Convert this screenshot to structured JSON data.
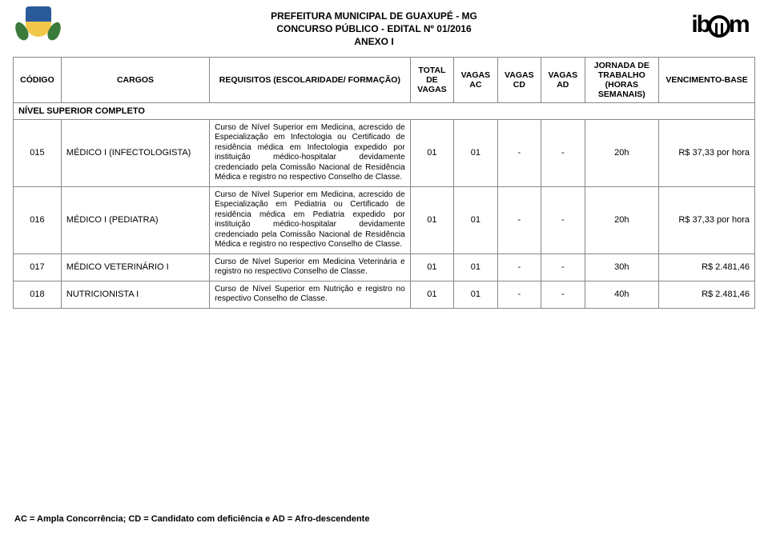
{
  "header": {
    "line1": "PREFEITURA MUNICIPAL DE GUAXUPÉ - MG",
    "line2": "CONCURSO PÚBLICO - EDITAL Nº 01/2016",
    "line3": "ANEXO I"
  },
  "columns": {
    "codigo": "CÓDIGO",
    "cargos": "CARGOS",
    "requisitos": "REQUISITOS (ESCOLARIDADE/ FORMAÇÃO)",
    "total": "TOTAL DE VAGAS",
    "ac": "VAGAS AC",
    "cd": "VAGAS CD",
    "ad": "VAGAS AD",
    "jornada": "JORNADA DE TRABALHO (HORAS SEMANAIS)",
    "vencimento": "VENCIMENTO-BASE"
  },
  "section_title": "NÍVEL SUPERIOR COMPLETO",
  "rows": [
    {
      "codigo": "015",
      "cargo": "MÉDICO I (INFECTOLOGISTA)",
      "requisitos": "Curso de Nível Superior em Medicina, acrescido de Especialização em Infectologia ou Certificado de residência médica em Infectologia expedido por instituição médico-hospitalar devidamente credenciado pela Comissão Nacional de Residência Médica e registro no respectivo Conselho de Classe.",
      "total": "01",
      "ac": "01",
      "cd": "-",
      "ad": "-",
      "jornada": "20h",
      "vencimento": "R$ 37,33 por hora"
    },
    {
      "codigo": "016",
      "cargo": "MÉDICO I (PEDIATRA)",
      "requisitos": "Curso de Nível Superior em Medicina, acrescido de Especialização em Pediatria ou Certificado de residência médica em Pediatria expedido por instituição médico-hospitalar devidamente credenciado pela Comissão Nacional de Residência Médica e registro no respectivo Conselho de Classe.",
      "total": "01",
      "ac": "01",
      "cd": "-",
      "ad": "-",
      "jornada": "20h",
      "vencimento": "R$ 37,33 por hora"
    },
    {
      "codigo": "017",
      "cargo": "MÉDICO VETERINÁRIO I",
      "requisitos": "Curso de Nível Superior em Medicina Veterinária e registro no respectivo Conselho de Classe.",
      "total": "01",
      "ac": "01",
      "cd": "-",
      "ad": "-",
      "jornada": "30h",
      "vencimento": "R$ 2.481,46"
    },
    {
      "codigo": "018",
      "cargo": "NUTRICIONISTA I",
      "requisitos": "Curso de Nível Superior em Nutrição e registro no respectivo Conselho de Classe.",
      "total": "01",
      "ac": "01",
      "cd": "-",
      "ad": "-",
      "jornada": "40h",
      "vencimento": "R$ 2.481,46"
    }
  ],
  "footer": "AC = Ampla Concorrência; CD = Candidato com deficiência e AD = Afro-descendente"
}
